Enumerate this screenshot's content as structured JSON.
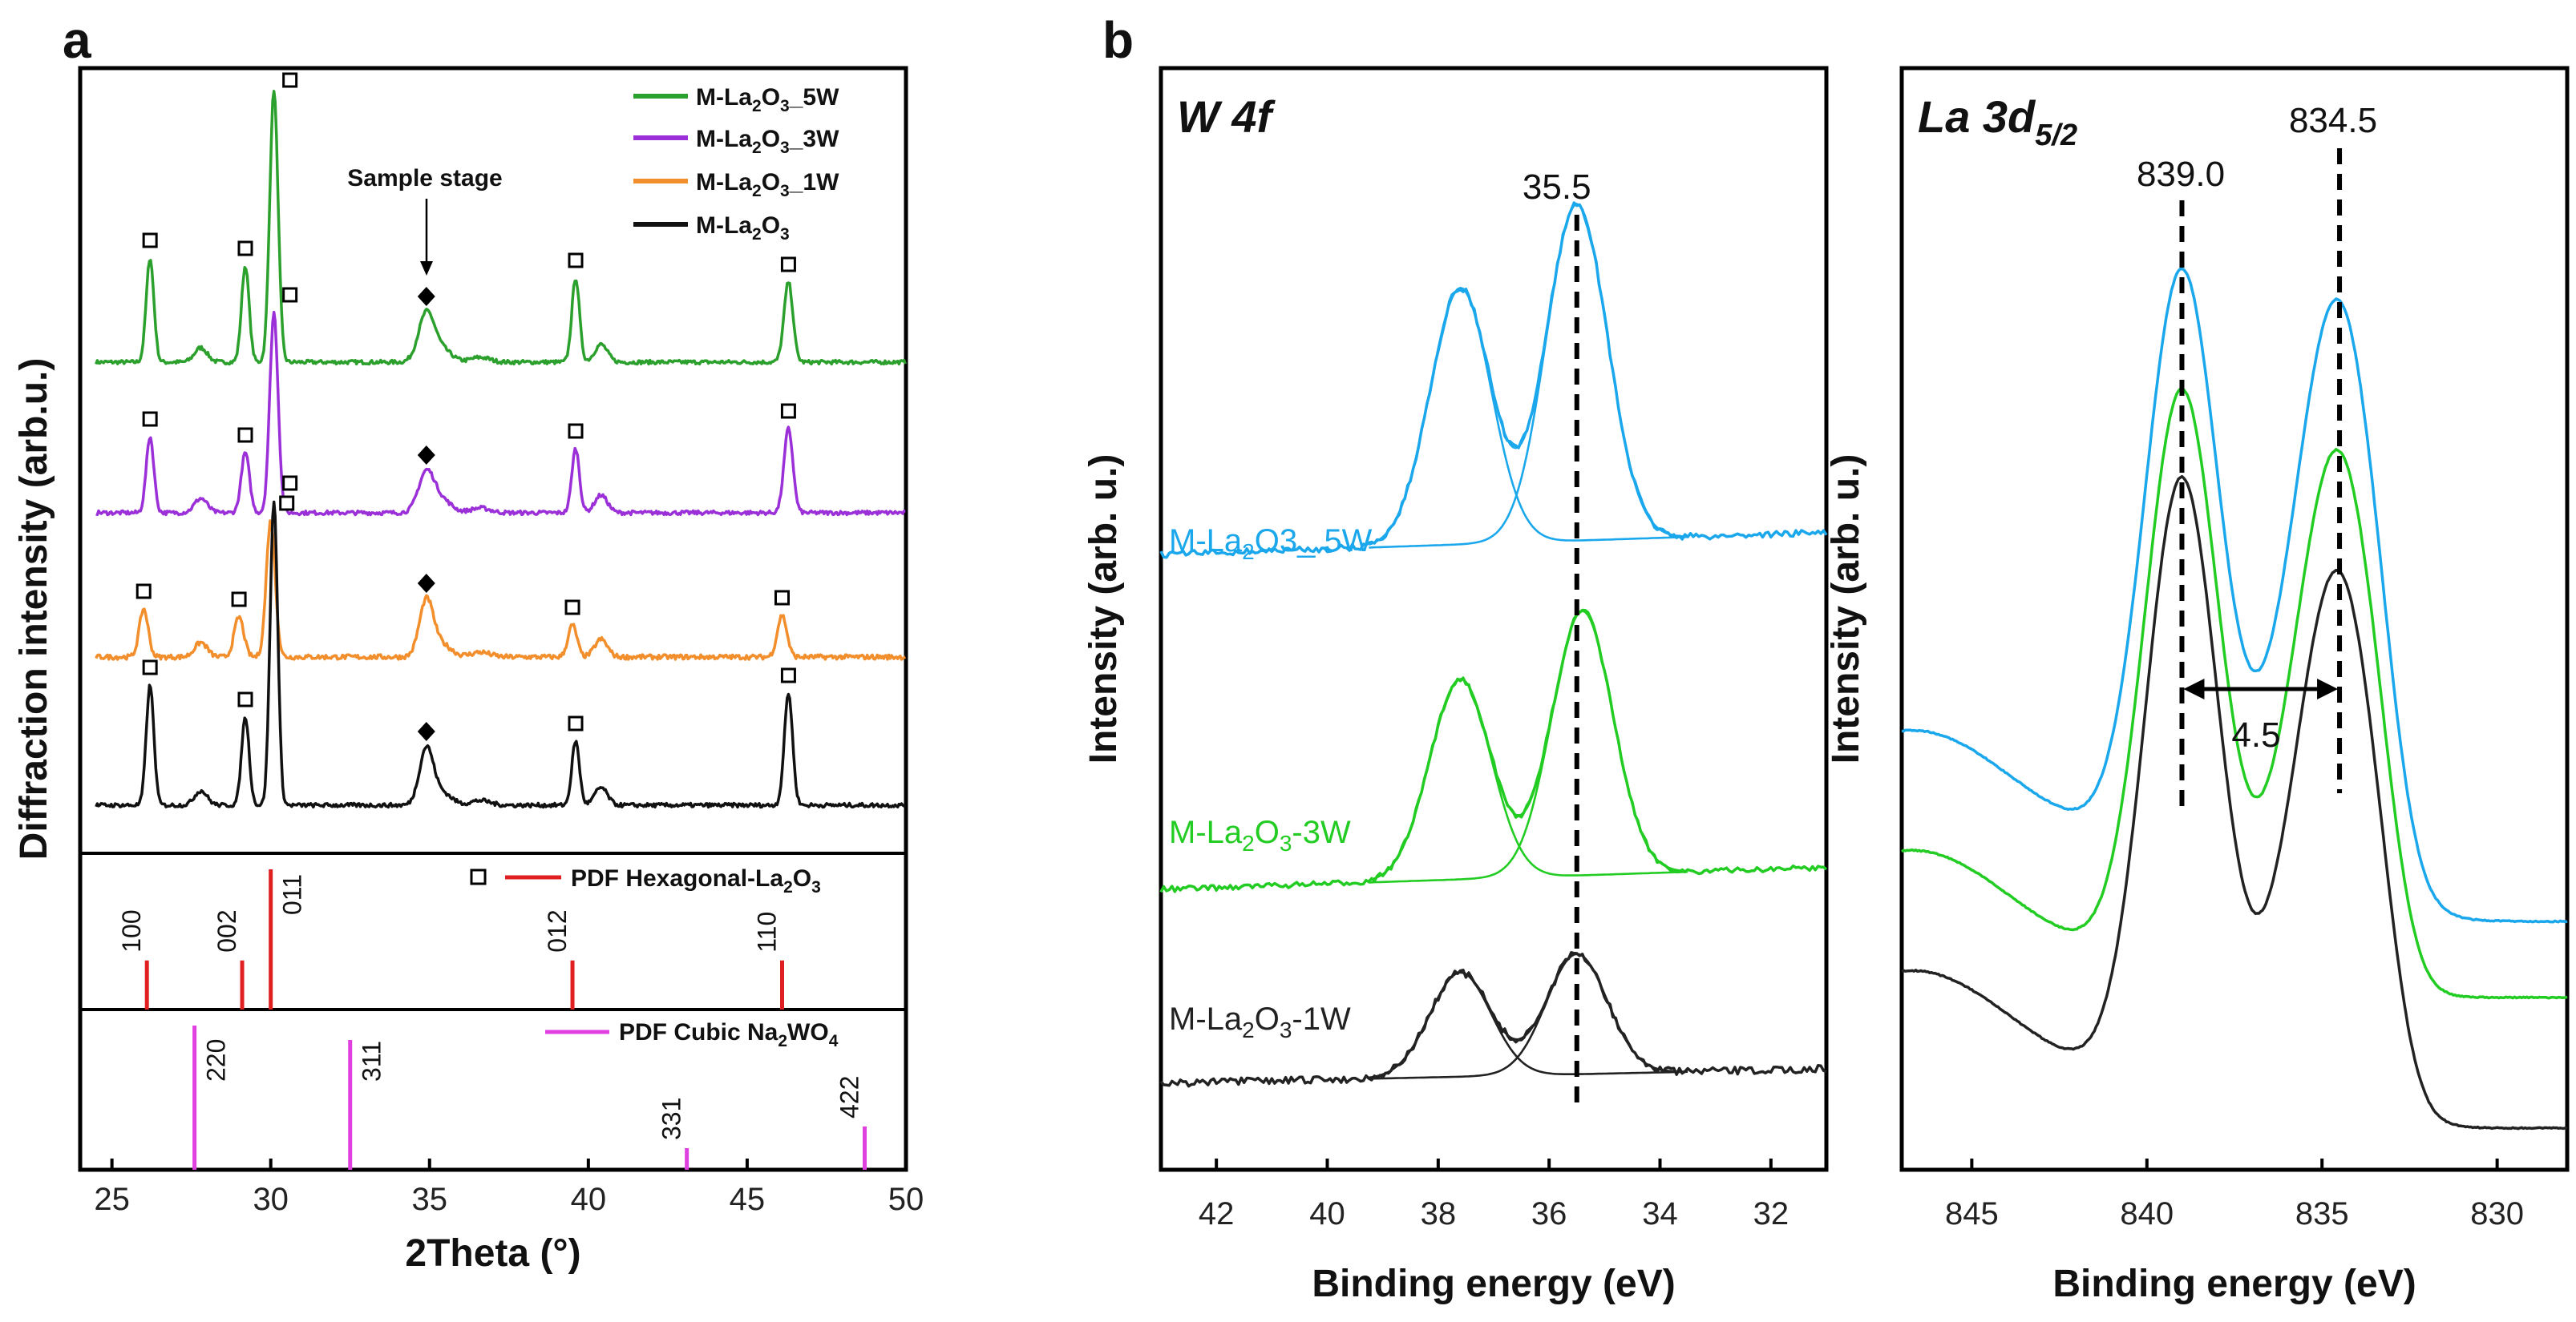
{
  "colors": {
    "w5": "#2ca02c",
    "w3": "#9b30d9",
    "w1": "#f28e2b",
    "w0": "#111111",
    "pdf_hex": "#e02020",
    "pdf_cubic": "#e040e0",
    "xps5": "#1aa7ec",
    "xps3": "#22cc22",
    "xps1": "#222222"
  },
  "panel_a": {
    "letter": "a",
    "xlabel": "2Theta (°)",
    "ylabel": "Diffraction intensity (arb.u.)",
    "x_range": [
      24,
      50
    ],
    "x_ticks": [
      "25",
      "30",
      "35",
      "40",
      "45",
      "50"
    ],
    "legend": [
      {
        "label": "M-La",
        "sub": "2",
        "mid": "O",
        "sub2": "3",
        "tail": "_5W"
      },
      {
        "label": "M-La",
        "sub": "2",
        "mid": "O",
        "sub2": "3",
        "tail": "_3W"
      },
      {
        "label": "M-La",
        "sub": "2",
        "mid": "O",
        "sub2": "3",
        "tail": "_1W"
      },
      {
        "label": "M-La",
        "sub": "2",
        "mid": "O",
        "sub2": "3",
        "tail": ""
      }
    ],
    "annotation": "Sample stage",
    "pdf1": {
      "label_pre": "PDF Hexagonal-La",
      "sub": "2",
      "mid": "O",
      "sub2": "3",
      "peaks": [
        {
          "x": 26.1,
          "h": 0.35,
          "hkl": "100"
        },
        {
          "x": 29.1,
          "h": 0.35,
          "hkl": "002"
        },
        {
          "x": 30.0,
          "h": 1.0,
          "hkl": "011"
        },
        {
          "x": 39.5,
          "h": 0.35,
          "hkl": "012"
        },
        {
          "x": 46.1,
          "h": 0.35,
          "hkl": "110"
        }
      ]
    },
    "pdf2": {
      "label_pre": "PDF Cubic Na",
      "sub": "2",
      "mid": "WO",
      "sub2": "4",
      "peaks": [
        {
          "x": 27.6,
          "h": 1.0,
          "hkl": "220"
        },
        {
          "x": 32.5,
          "h": 0.9,
          "hkl": "311"
        },
        {
          "x": 43.1,
          "h": 0.15,
          "hkl": "331"
        },
        {
          "x": 48.7,
          "h": 0.3,
          "hkl": "422"
        }
      ]
    }
  },
  "panel_b": {
    "letter": "b",
    "w4f": {
      "title": "W 4f",
      "xlabel": "Binding energy (eV)",
      "ylabel": "Intensity (arb. u.)",
      "x_range": [
        43,
        31
      ],
      "x_ticks": [
        "42",
        "40",
        "38",
        "36",
        "34",
        "32"
      ],
      "peak_label": "35.5",
      "samples": [
        {
          "pre": "M-La",
          "sub": "2",
          "mid": "O3_ 5W"
        },
        {
          "pre": "M-La",
          "sub": "2",
          "mid": "O",
          "sub2": "3",
          "tail": "-3W"
        },
        {
          "pre": "M-La",
          "sub": "2",
          "mid": "O",
          "sub2": "3",
          "tail": "-1W"
        }
      ]
    },
    "la3d": {
      "title": "La 3d",
      "title_sub": "5/2",
      "xlabel": "Binding energy (eV)",
      "ylabel": "Intensity (arb. u.)",
      "x_range": [
        847,
        828
      ],
      "x_ticks": [
        "845",
        "840",
        "835",
        "830"
      ],
      "peak1": "839.0",
      "peak2": "834.5",
      "split": "4.5"
    }
  },
  "chart_data": [
    {
      "type": "line",
      "title": "a",
      "xlabel": "2Theta (°)",
      "ylabel": "Diffraction intensity (arb.u.)",
      "xlim": [
        24,
        50
      ],
      "series": [
        {
          "name": "M-La2O3_5W",
          "peaks_2theta": [
            26.2,
            29.2,
            30.1,
            34.9,
            39.6,
            46.3
          ]
        },
        {
          "name": "M-La2O3_3W",
          "peaks_2theta": [
            26.2,
            29.2,
            30.1,
            34.9,
            39.6,
            46.3
          ]
        },
        {
          "name": "M-La2O3_1W",
          "peaks_2theta": [
            26.0,
            29.0,
            30.0,
            34.9,
            39.5,
            46.1
          ]
        },
        {
          "name": "M-La2O3",
          "peaks_2theta": [
            26.2,
            29.2,
            30.1,
            34.9,
            39.6,
            46.3
          ]
        }
      ],
      "reference": [
        {
          "name": "PDF Hexagonal-La2O3",
          "x": [
            26.1,
            29.1,
            30.0,
            39.5,
            46.1
          ],
          "hkl": [
            "100",
            "002",
            "011",
            "012",
            "110"
          ]
        },
        {
          "name": "PDF Cubic Na2WO4",
          "x": [
            27.6,
            32.5,
            43.1,
            48.7
          ],
          "hkl": [
            "220",
            "311",
            "331",
            "422"
          ]
        }
      ]
    },
    {
      "type": "line",
      "title": "W 4f",
      "xlabel": "Binding energy (eV)",
      "ylabel": "Intensity (arb. u.)",
      "xlim": [
        43,
        31
      ],
      "series": [
        {
          "name": "M-La2O3_ 5W",
          "peaks_eV": [
            37.6,
            35.5
          ]
        },
        {
          "name": "M-La2O3-3W",
          "peaks_eV": [
            37.6,
            35.4
          ]
        },
        {
          "name": "M-La2O3-1W",
          "peaks_eV": [
            37.6,
            35.5
          ]
        }
      ],
      "annotation": "35.5"
    },
    {
      "type": "line",
      "title": "La 3d5/2",
      "xlabel": "Binding energy (eV)",
      "ylabel": "Intensity (arb. u.)",
      "xlim": [
        847,
        828
      ],
      "peaks_eV": [
        839.0,
        834.5
      ],
      "splitting_eV": 4.5
    }
  ]
}
